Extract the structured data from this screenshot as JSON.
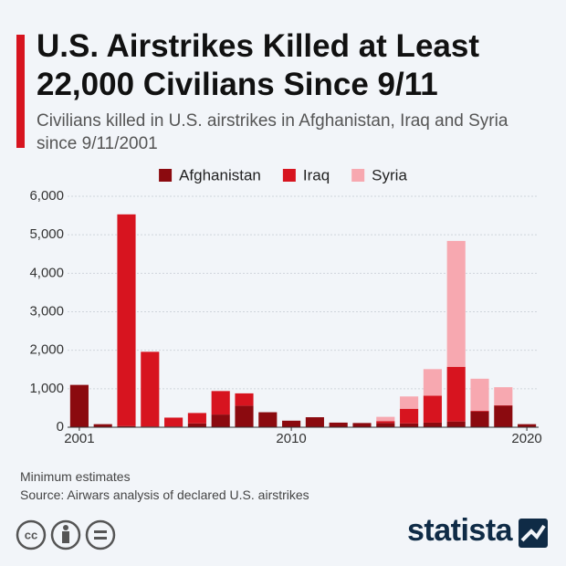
{
  "chart_data": {
    "type": "stacked_bar",
    "title": "U.S. Airstrikes Killed at Least 22,000 Civilians Since 9/11",
    "subtitle": "Civilians killed in U.S. airstrikes in Afghanistan, Iraq and Syria since 9/11/2001",
    "x": [
      2001,
      2002,
      2003,
      2004,
      2005,
      2006,
      2007,
      2008,
      2009,
      2010,
      2011,
      2012,
      2013,
      2014,
      2015,
      2016,
      2017,
      2018,
      2019,
      2020
    ],
    "xlim": [
      2000.5,
      2020.5
    ],
    "xticks": [
      2001,
      2010,
      2020
    ],
    "ylim": [
      0,
      6000
    ],
    "yticks": [
      {
        "value": 0,
        "label": "0"
      },
      {
        "value": 1000,
        "label": "1,000"
      },
      {
        "value": 2000,
        "label": "2,000"
      },
      {
        "value": 3000,
        "label": "3,000"
      },
      {
        "value": 4000,
        "label": "4,000"
      },
      {
        "value": 5000,
        "label": "5,000"
      },
      {
        "value": 6000,
        "label": "6,000"
      }
    ],
    "grid": true,
    "series": [
      {
        "name": "Afghanistan",
        "color": "#8b0a0f",
        "values": [
          1100,
          80,
          30,
          20,
          20,
          100,
          330,
          560,
          390,
          170,
          260,
          120,
          110,
          110,
          100,
          120,
          150,
          410,
          560,
          80
        ]
      },
      {
        "name": "Iraq",
        "color": "#d7141f",
        "values": [
          0,
          0,
          5500,
          1940,
          230,
          270,
          610,
          320,
          0,
          0,
          0,
          0,
          0,
          50,
          380,
          700,
          1420,
          20,
          10,
          0
        ]
      },
      {
        "name": "Syria",
        "color": "#f7a8b0",
        "values": [
          0,
          0,
          0,
          0,
          0,
          0,
          0,
          0,
          0,
          0,
          0,
          0,
          0,
          110,
          320,
          690,
          3270,
          830,
          470,
          0
        ]
      }
    ],
    "notes": [
      "Minimum estimates",
      "Source: Airwars analysis of declared U.S. airstrikes"
    ],
    "brand": "statista"
  }
}
